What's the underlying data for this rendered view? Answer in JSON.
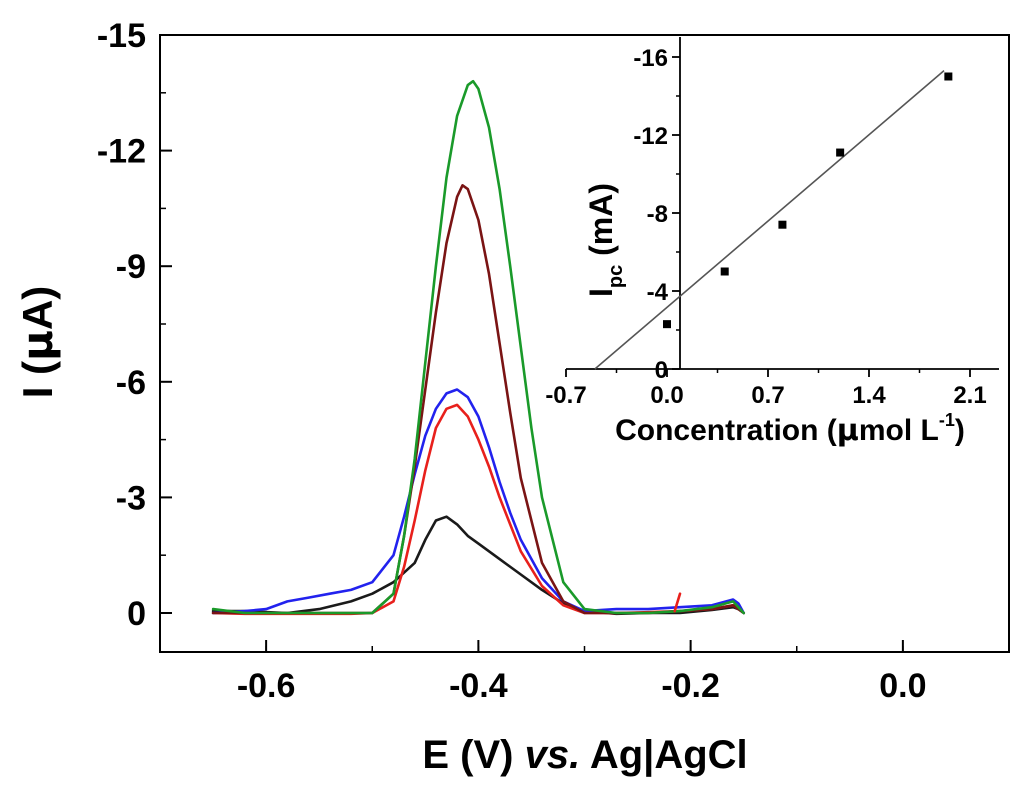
{
  "chart_data": [
    {
      "type": "line",
      "title": "",
      "xlabel_parts": {
        "prefix": "E (V) ",
        "italic": "vs.",
        "suffix": " Ag|AgCl"
      },
      "ylabel_parts": {
        "prefix": "I (",
        "mu": "μ",
        "suffix": "A)"
      },
      "xlim": [
        -0.7,
        0.1
      ],
      "ylim": [
        1.0,
        -15.0
      ],
      "x_ticks": [
        -0.6,
        -0.4,
        -0.2,
        0.0
      ],
      "x_tick_labels": [
        "-0.6",
        "-0.4",
        "-0.2",
        "0.0"
      ],
      "y_ticks": [
        -15,
        -12,
        -9,
        -6,
        -3,
        0
      ],
      "y_tick_labels": [
        "-15",
        "-12",
        "-9",
        "-6",
        "-3",
        "0"
      ],
      "series": [
        {
          "name": "black",
          "color": "#1a1a1a",
          "x": [
            -0.65,
            -0.62,
            -0.58,
            -0.55,
            -0.52,
            -0.5,
            -0.48,
            -0.46,
            -0.45,
            -0.44,
            -0.43,
            -0.42,
            -0.41,
            -0.4,
            -0.39,
            -0.38,
            -0.36,
            -0.34,
            -0.32,
            -0.3,
            -0.27,
            -0.24,
            -0.21,
            -0.18,
            -0.16,
            -0.155,
            -0.15
          ],
          "y": [
            -0.05,
            -0.05,
            0.0,
            -0.1,
            -0.3,
            -0.5,
            -0.8,
            -1.3,
            -1.9,
            -2.4,
            -2.5,
            -2.3,
            -2.0,
            -1.8,
            -1.6,
            -1.4,
            -1.0,
            -0.6,
            -0.25,
            -0.05,
            0.02,
            0.0,
            0.0,
            -0.08,
            -0.15,
            -0.1,
            0.0
          ]
        },
        {
          "name": "red",
          "color": "#e8201c",
          "x": [
            -0.65,
            -0.62,
            -0.58,
            -0.55,
            -0.52,
            -0.5,
            -0.48,
            -0.47,
            -0.46,
            -0.45,
            -0.44,
            -0.43,
            -0.42,
            -0.41,
            -0.4,
            -0.39,
            -0.38,
            -0.37,
            -0.36,
            -0.34,
            -0.32,
            -0.3,
            -0.27,
            -0.24,
            -0.21,
            -0.18,
            -0.16,
            -0.155,
            -0.15
          ],
          "y": [
            0.0,
            0.02,
            0.02,
            0.02,
            0.02,
            0.0,
            -0.3,
            -1.2,
            -2.4,
            -3.7,
            -4.8,
            -5.3,
            -5.4,
            -5.1,
            -4.5,
            -3.8,
            -3.0,
            -2.3,
            -1.6,
            -0.7,
            -0.2,
            0.0,
            0.0,
            -0.02,
            -0.05,
            -0.1,
            -0.2,
            -0.15,
            0.0
          ]
        },
        {
          "name": "blue",
          "color": "#2222ee",
          "x": [
            -0.65,
            -0.62,
            -0.6,
            -0.58,
            -0.56,
            -0.54,
            -0.52,
            -0.5,
            -0.48,
            -0.47,
            -0.46,
            -0.45,
            -0.44,
            -0.43,
            -0.42,
            -0.41,
            -0.4,
            -0.39,
            -0.38,
            -0.37,
            -0.36,
            -0.34,
            -0.32,
            -0.3,
            -0.27,
            -0.24,
            -0.21,
            -0.18,
            -0.16,
            -0.155,
            -0.15
          ],
          "y": [
            0.0,
            -0.05,
            -0.1,
            -0.3,
            -0.4,
            -0.5,
            -0.6,
            -0.8,
            -1.5,
            -2.5,
            -3.6,
            -4.6,
            -5.3,
            -5.7,
            -5.8,
            -5.6,
            -5.1,
            -4.3,
            -3.4,
            -2.6,
            -1.9,
            -0.9,
            -0.3,
            -0.05,
            -0.1,
            -0.1,
            -0.15,
            -0.2,
            -0.35,
            -0.25,
            0.0
          ]
        },
        {
          "name": "dark red",
          "color": "#7a1414",
          "x": [
            -0.65,
            -0.62,
            -0.58,
            -0.55,
            -0.52,
            -0.5,
            -0.48,
            -0.47,
            -0.46,
            -0.45,
            -0.44,
            -0.43,
            -0.42,
            -0.415,
            -0.41,
            -0.4,
            -0.39,
            -0.38,
            -0.37,
            -0.36,
            -0.34,
            -0.32,
            -0.3,
            -0.27,
            -0.24,
            -0.21,
            -0.18,
            -0.16,
            -0.15
          ],
          "y": [
            0.0,
            0.0,
            0.0,
            0.0,
            0.0,
            0.0,
            -0.5,
            -2.0,
            -3.8,
            -5.8,
            -7.8,
            -9.6,
            -10.8,
            -11.1,
            -11.0,
            -10.2,
            -8.8,
            -7.0,
            -5.2,
            -3.5,
            -1.3,
            -0.3,
            0.0,
            0.0,
            0.0,
            -0.05,
            -0.1,
            -0.2,
            0.0
          ]
        },
        {
          "name": "green",
          "color": "#1a9a2a",
          "x": [
            -0.65,
            -0.62,
            -0.58,
            -0.55,
            -0.52,
            -0.5,
            -0.48,
            -0.47,
            -0.46,
            -0.45,
            -0.44,
            -0.43,
            -0.42,
            -0.41,
            -0.405,
            -0.4,
            -0.39,
            -0.38,
            -0.37,
            -0.36,
            -0.35,
            -0.34,
            -0.32,
            -0.3,
            -0.27,
            -0.24,
            -0.21,
            -0.18,
            -0.16,
            -0.15
          ],
          "y": [
            -0.1,
            0.0,
            0.0,
            0.0,
            0.0,
            0.0,
            -0.5,
            -2.0,
            -4.0,
            -6.5,
            -9.0,
            -11.3,
            -12.9,
            -13.7,
            -13.8,
            -13.6,
            -12.6,
            -11.0,
            -9.0,
            -6.9,
            -4.8,
            -3.0,
            -0.8,
            -0.1,
            0.0,
            0.0,
            -0.05,
            -0.15,
            -0.3,
            0.0
          ]
        },
        {
          "name": "red spike",
          "color": "#e8201c",
          "x": [
            -0.215,
            -0.21
          ],
          "y": [
            -0.05,
            -0.5
          ]
        }
      ]
    },
    {
      "type": "scatter",
      "title": "",
      "xlabel_parts": {
        "prefix": "Concentration (",
        "mu": "μ",
        "unit": "mol L",
        "exponent": "-1",
        "suffix": ")"
      },
      "ylabel_parts": {
        "main": "I",
        "sub": "pc",
        "suffix": " (mA)"
      },
      "xlim": [
        -0.7,
        2.2
      ],
      "ylim": [
        0,
        -17
      ],
      "x_ticks": [
        -0.7,
        0.0,
        0.7,
        1.4,
        2.1
      ],
      "x_tick_labels": [
        "-0.7",
        "0.0",
        "0.7",
        "1.4",
        "2.1"
      ],
      "y_ticks": [
        0,
        -4,
        -8,
        -12,
        -16
      ],
      "y_tick_labels": [
        "0",
        "-4",
        "-8",
        "-12",
        "-16"
      ],
      "points": {
        "x": [
          0.0,
          0.4,
          0.8,
          1.2,
          1.95
        ],
        "y": [
          -2.3,
          -5.0,
          -7.4,
          -11.1,
          -15.0
        ]
      },
      "fit_line": {
        "x": [
          -0.5,
          1.92
        ],
        "y": [
          0.0,
          -15.3
        ]
      }
    }
  ]
}
